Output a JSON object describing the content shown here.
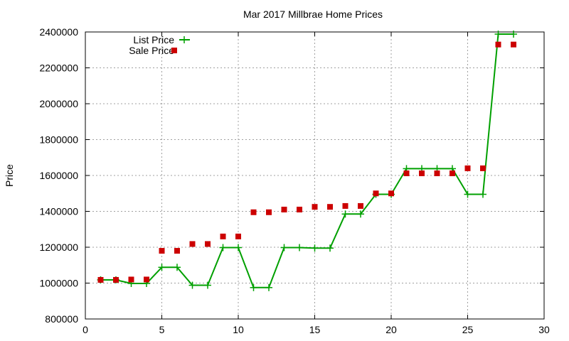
{
  "chart_data": {
    "type": "line",
    "title": "Mar 2017 Millbrae Home Prices",
    "xlabel": "",
    "ylabel": "Price",
    "xlim": [
      0,
      30
    ],
    "ylim": [
      800000,
      2400000
    ],
    "x_ticks": [
      "0",
      "5",
      "10",
      "15",
      "20",
      "25",
      "30"
    ],
    "y_ticks": [
      "800000",
      "1000000",
      "1200000",
      "1400000",
      "1600000",
      "1800000",
      "2000000",
      "2200000",
      "2400000"
    ],
    "grid": true,
    "legend_position": "top-left",
    "x": [
      1,
      2,
      3,
      4,
      5,
      6,
      7,
      8,
      9,
      10,
      11,
      12,
      13,
      14,
      15,
      16,
      17,
      18,
      19,
      20,
      21,
      22,
      23,
      24,
      25,
      26,
      27,
      28
    ],
    "series": [
      {
        "name": "List Price",
        "style": "line-with-plus-markers",
        "color": "#00a000",
        "values": [
          1018000,
          1018000,
          998000,
          998000,
          1088000,
          1088000,
          988000,
          988000,
          1198000,
          1198000,
          975000,
          975000,
          1198000,
          1198000,
          1195000,
          1195000,
          1385000,
          1385000,
          1495000,
          1495000,
          1638000,
          1638000,
          1638000,
          1638000,
          1495000,
          1495000,
          2388000,
          2388000
        ]
      },
      {
        "name": "Sale Price",
        "style": "square-markers",
        "color": "#cc0000",
        "values": [
          1018000,
          1018000,
          1020000,
          1020000,
          1180000,
          1180000,
          1218000,
          1218000,
          1260000,
          1260000,
          1395000,
          1395000,
          1410000,
          1410000,
          1425000,
          1425000,
          1430000,
          1430000,
          1500000,
          1500000,
          1612000,
          1612000,
          1612000,
          1612000,
          1640000,
          1640000,
          2330000,
          2330000
        ]
      }
    ]
  }
}
